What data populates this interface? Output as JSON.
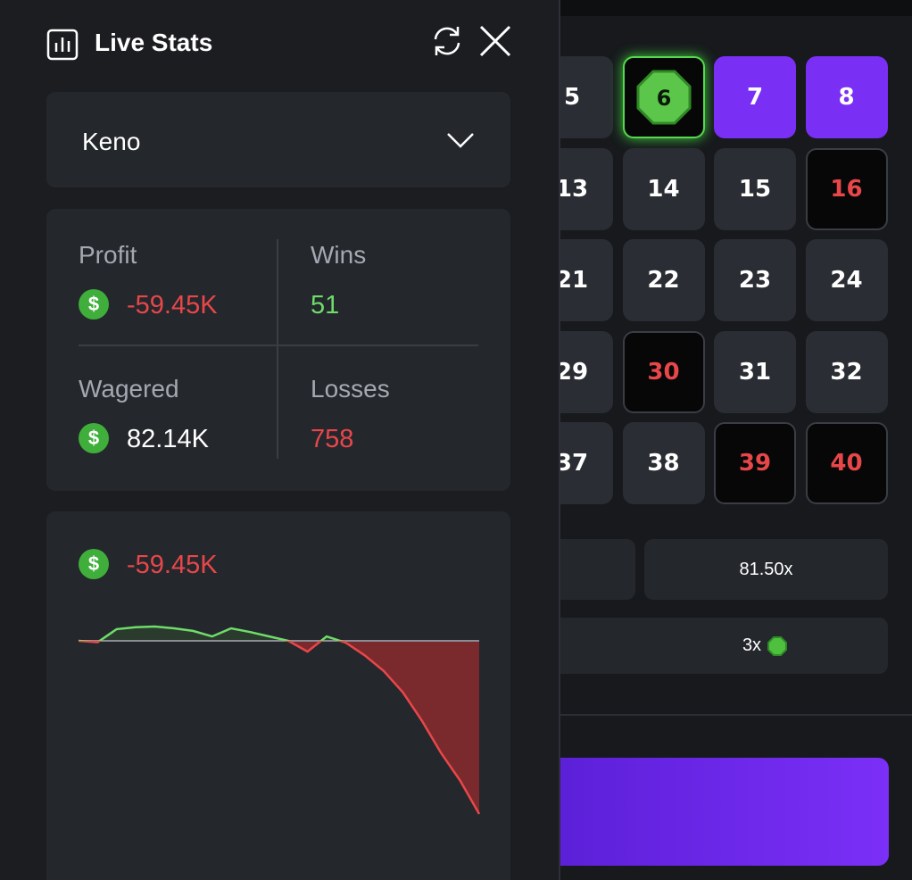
{
  "header": {
    "title": "Live Stats"
  },
  "game_select": {
    "value": "Keno"
  },
  "currency_symbol": "$",
  "stats": {
    "profit": {
      "label": "Profit",
      "value": "-59.45K"
    },
    "wins": {
      "label": "Wins",
      "value": "51"
    },
    "wagered": {
      "label": "Wagered",
      "value": "82.14K"
    },
    "losses": {
      "label": "Losses",
      "value": "758"
    }
  },
  "profit_chart": {
    "type": "line",
    "value": "-59.45K",
    "values": [
      0,
      -0.5,
      4.0,
      4.7,
      4.9,
      4.3,
      3.4,
      1.5,
      4.3,
      3.0,
      1.5,
      0,
      -3.7,
      1.5,
      -0.6,
      -5.0,
      -10.4,
      -17.7,
      -27.5,
      -38.5,
      -48.0,
      -59.45
    ]
  },
  "board": {
    "tiles": [
      {
        "label": "5",
        "state": "default"
      },
      {
        "label": "6",
        "state": "gem"
      },
      {
        "label": "7",
        "state": "selected"
      },
      {
        "label": "8",
        "state": "selected"
      },
      {
        "label": "13",
        "state": "default"
      },
      {
        "label": "14",
        "state": "default"
      },
      {
        "label": "15",
        "state": "default"
      },
      {
        "label": "16",
        "state": "miss"
      },
      {
        "label": "21",
        "state": "default"
      },
      {
        "label": "22",
        "state": "default"
      },
      {
        "label": "23",
        "state": "default"
      },
      {
        "label": "24",
        "state": "default"
      },
      {
        "label": "29",
        "state": "default"
      },
      {
        "label": "30",
        "state": "miss"
      },
      {
        "label": "31",
        "state": "default"
      },
      {
        "label": "32",
        "state": "default"
      },
      {
        "label": "37",
        "state": "default"
      },
      {
        "label": "38",
        "state": "default"
      },
      {
        "label": "39",
        "state": "miss"
      },
      {
        "label": "40",
        "state": "miss"
      }
    ]
  },
  "payouts": {
    "multiplier": "81.50x",
    "gem_count": "3x"
  }
}
